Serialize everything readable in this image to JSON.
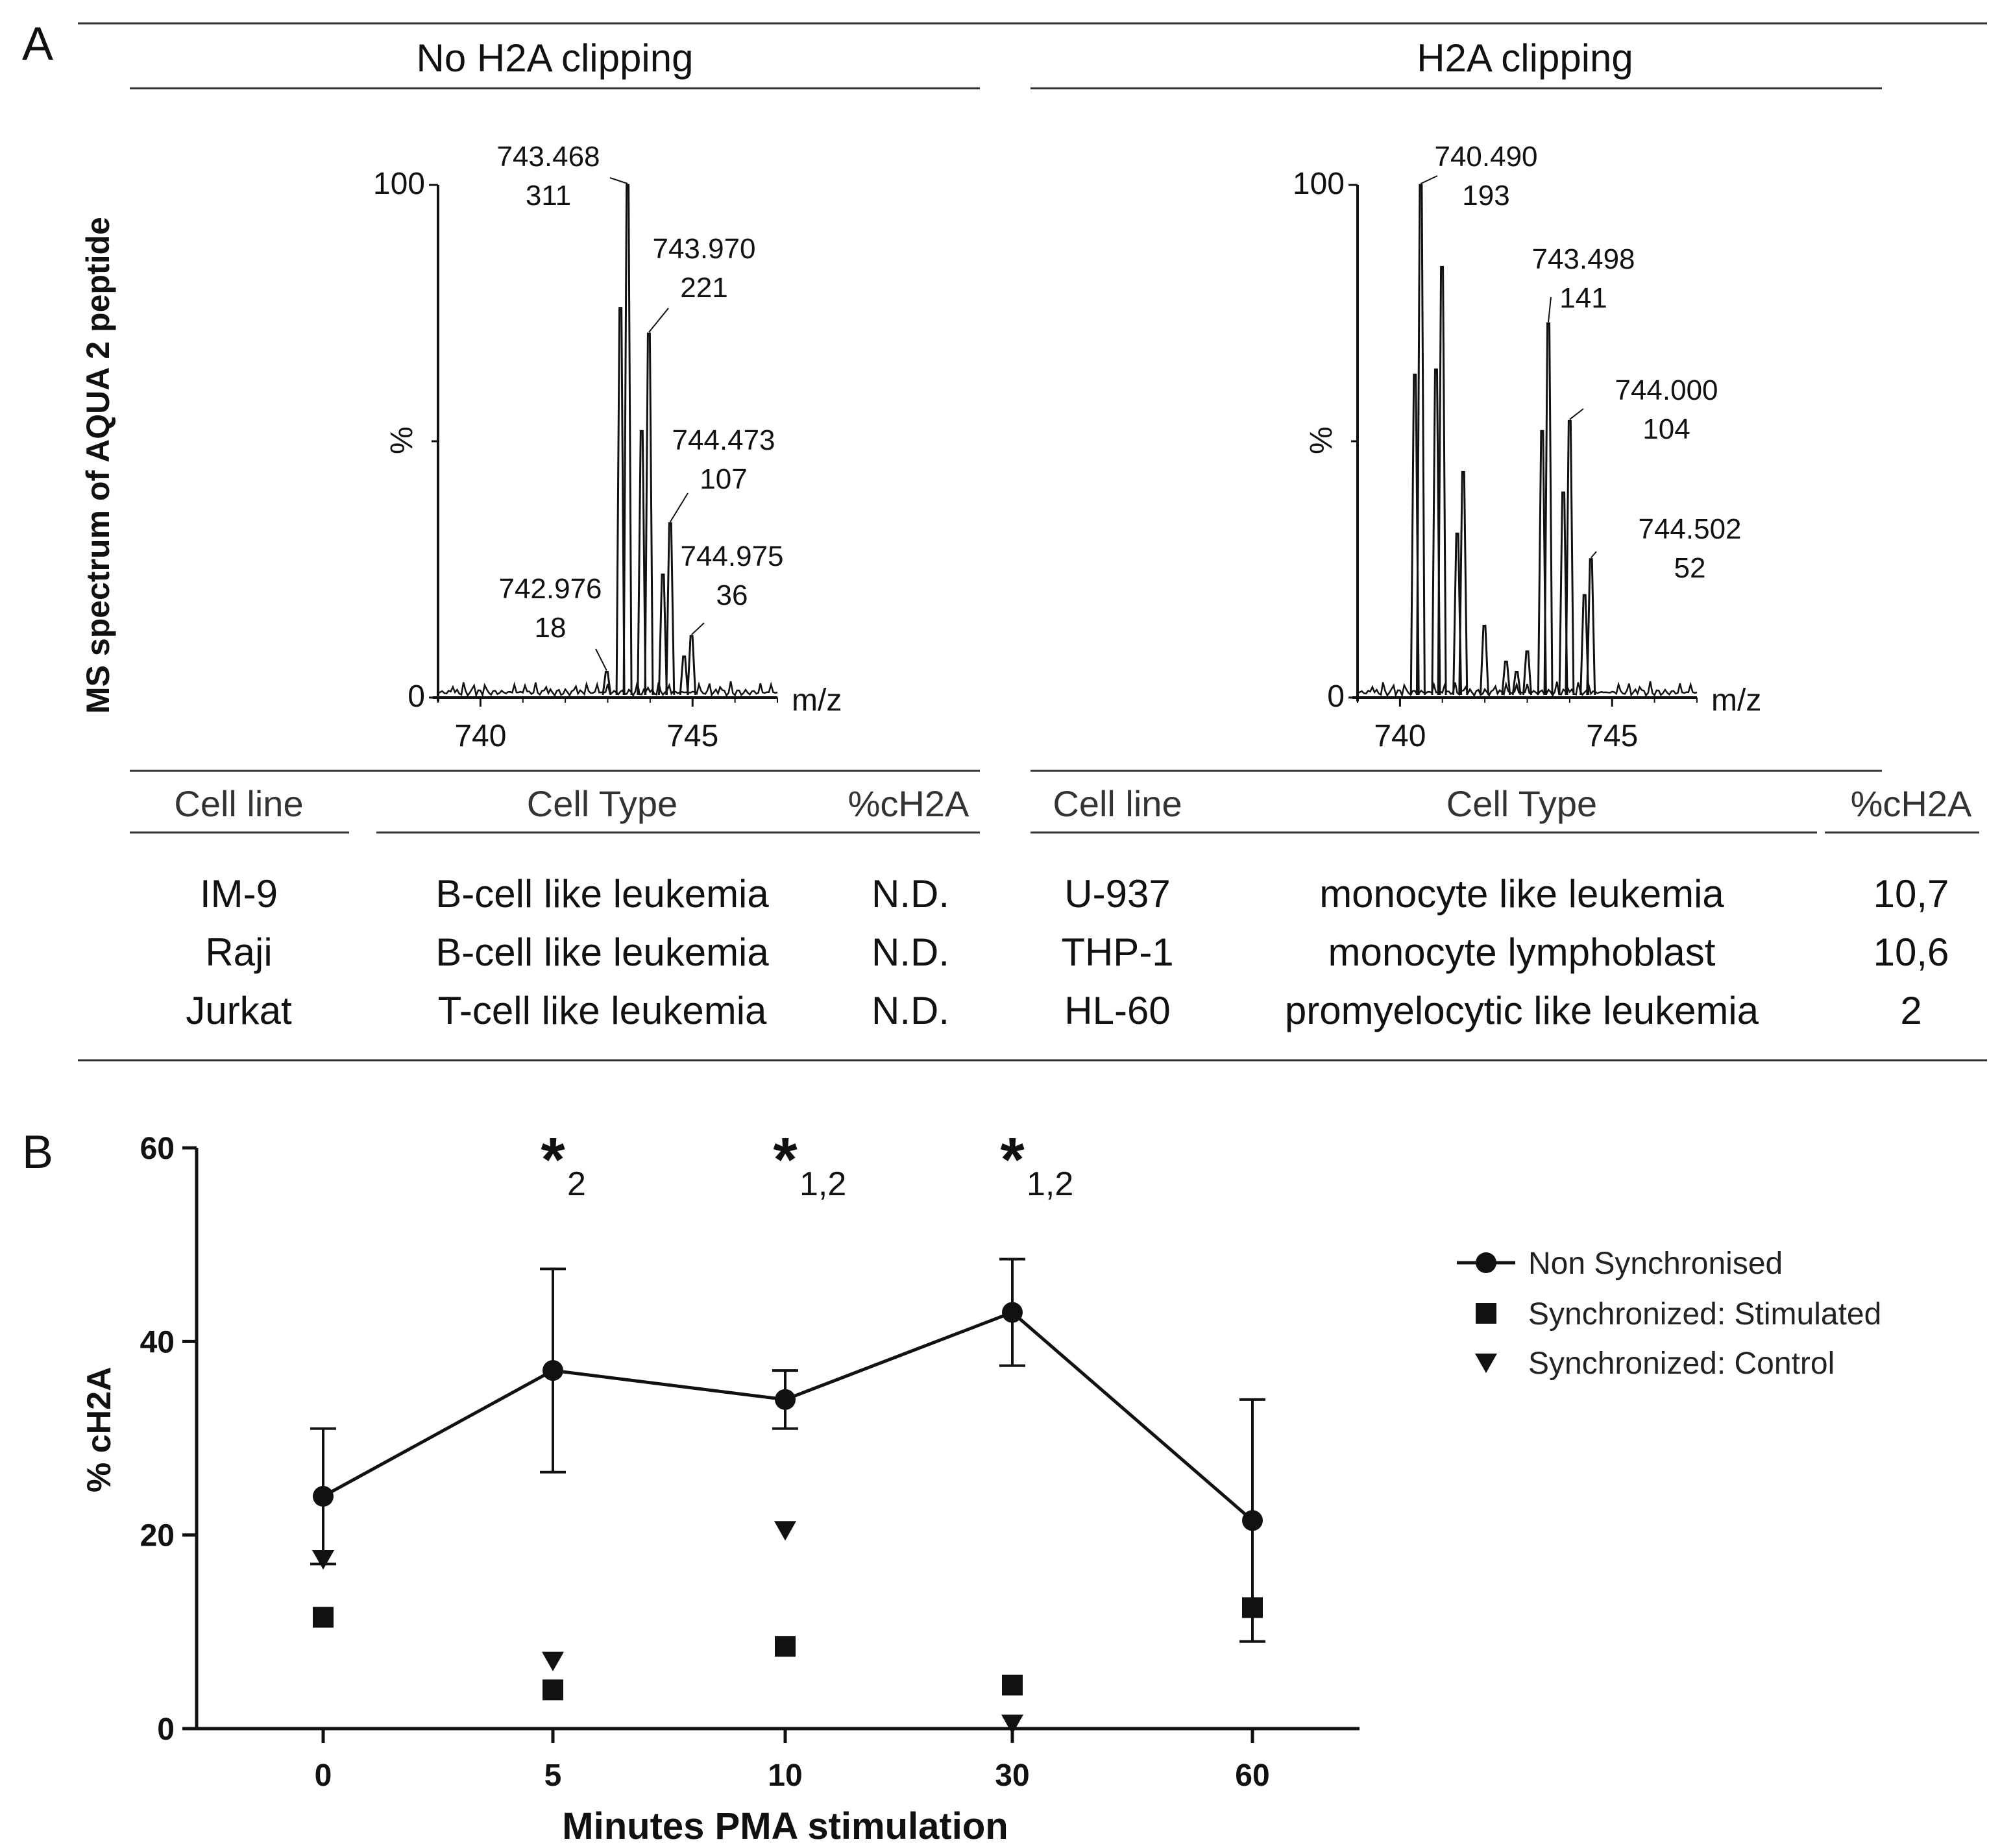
{
  "panels": {
    "a": "A",
    "b": "B"
  },
  "panel_a": {
    "y_title": "MS spectrum of  AQUA 2 peptide",
    "left_title": "No H2A clipping",
    "right_title": "H2A clipping",
    "table_headers": {
      "cell_line": "Cell line",
      "cell_type": "Cell Type",
      "pct": "%cH2A"
    },
    "left_rows": [
      {
        "line": "IM-9",
        "type": "B-cell like leukemia",
        "pct": "N.D."
      },
      {
        "line": "Raji",
        "type": "B-cell like leukemia",
        "pct": "N.D."
      },
      {
        "line": "Jurkat",
        "type": "T-cell like leukemia",
        "pct": "N.D."
      }
    ],
    "right_rows": [
      {
        "line": "U-937",
        "type": "monocyte like leukemia",
        "pct": "10,7"
      },
      {
        "line": "THP-1",
        "type": "monocyte lymphoblast",
        "pct": "10,6"
      },
      {
        "line": "HL-60",
        "type": "promyelocytic like leukemia",
        "pct": "2"
      }
    ]
  },
  "chart_data": [
    {
      "type": "line",
      "title": "No H2A clipping",
      "xlabel": "m/z",
      "ylabel": "%",
      "xlim": [
        739,
        747
      ],
      "ylim": [
        0,
        100
      ],
      "xticks": [
        "740",
        "745"
      ],
      "yticks": [
        "0",
        "100"
      ],
      "peaks": [
        {
          "mz": 742.976,
          "rel": 5,
          "label": "742.976",
          "int": "18"
        },
        {
          "mz": 743.468,
          "rel": 100,
          "label": "743.468",
          "int": "311"
        },
        {
          "mz": 743.97,
          "rel": 71,
          "label": "743.970",
          "int": "221"
        },
        {
          "mz": 744.473,
          "rel": 34,
          "label": "744.473",
          "int": "107"
        },
        {
          "mz": 744.975,
          "rel": 12,
          "label": "744.975",
          "int": "36"
        }
      ],
      "unlabeled_peaks": [
        {
          "mz": 743.3,
          "rel": 76
        },
        {
          "mz": 743.8,
          "rel": 52
        },
        {
          "mz": 744.3,
          "rel": 24
        },
        {
          "mz": 744.8,
          "rel": 8
        }
      ]
    },
    {
      "type": "line",
      "title": "H2A clipping",
      "xlabel": "m/z",
      "ylabel": "%",
      "xlim": [
        739,
        747
      ],
      "ylim": [
        0,
        100
      ],
      "xticks": [
        "740",
        "745"
      ],
      "yticks": [
        "0",
        "100"
      ],
      "peaks": [
        {
          "mz": 740.49,
          "rel": 100,
          "label": "740.490",
          "int": "193"
        },
        {
          "mz": 743.498,
          "rel": 73,
          "label": "743.498",
          "int": "141"
        },
        {
          "mz": 744.0,
          "rel": 54,
          "label": "744.000",
          "int": "104"
        },
        {
          "mz": 744.502,
          "rel": 27,
          "label": "744.502",
          "int": "52"
        }
      ],
      "unlabeled_peaks": [
        {
          "mz": 740.99,
          "rel": 84
        },
        {
          "mz": 741.49,
          "rel": 44
        },
        {
          "mz": 741.99,
          "rel": 14
        },
        {
          "mz": 740.35,
          "rel": 63
        },
        {
          "mz": 740.85,
          "rel": 64
        },
        {
          "mz": 741.35,
          "rel": 32
        },
        {
          "mz": 743.35,
          "rel": 52
        },
        {
          "mz": 743.85,
          "rel": 40
        },
        {
          "mz": 744.35,
          "rel": 20
        },
        {
          "mz": 742.5,
          "rel": 7
        },
        {
          "mz": 743.0,
          "rel": 9
        },
        {
          "mz": 742.75,
          "rel": 5
        }
      ]
    },
    {
      "type": "line",
      "title": "",
      "xlabel": "Minutes PMA stimulation",
      "ylabel": "% cH2A",
      "categories": [
        "0",
        "5",
        "10",
        "30",
        "60"
      ],
      "ylim": [
        0,
        60
      ],
      "yticks": [
        "0",
        "20",
        "40",
        "60"
      ],
      "series": [
        {
          "name": "Non Synchronised",
          "marker": "circle",
          "values": [
            24,
            37,
            34,
            43,
            21.5
          ],
          "err": [
            7,
            10.5,
            3,
            5.5,
            12.5
          ]
        },
        {
          "name": "Synchronized: Stimulated",
          "marker": "square",
          "values": [
            11.5,
            4,
            8.5,
            4.5,
            12.5
          ]
        },
        {
          "name": "Synchronized: Control",
          "marker": "triangle-down",
          "values": [
            17.5,
            7,
            20.5,
            0.5,
            null
          ]
        }
      ],
      "annotations": [
        {
          "category": "5",
          "star": "*",
          "sub": "2"
        },
        {
          "category": "10",
          "star": "*",
          "sub": "1,2"
        },
        {
          "category": "30",
          "star": "*",
          "sub": "1,2"
        }
      ]
    }
  ]
}
